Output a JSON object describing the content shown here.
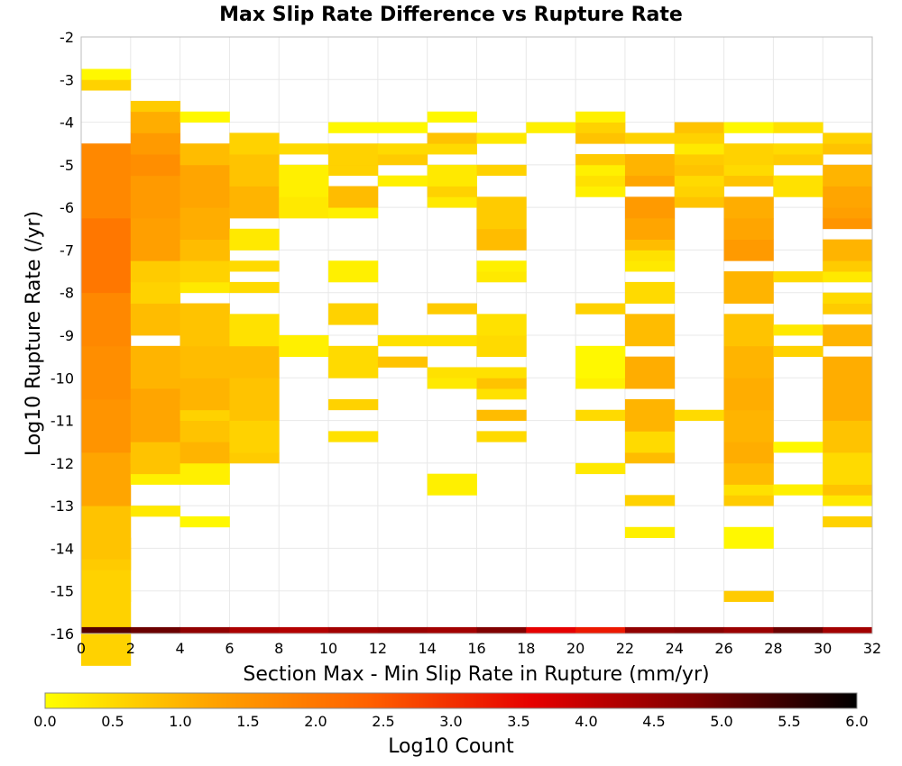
{
  "chart_data": {
    "type": "heatmap",
    "title": "Max Slip Rate Difference vs Rupture Rate",
    "xlabel": "Section Max - Min Slip Rate in Rupture (mm/yr)",
    "ylabel": "Log10 Rupture Rate (/yr)",
    "xlim": [
      0,
      32
    ],
    "ylim": [
      -16,
      -2
    ],
    "x_ticks": [
      "0",
      "2",
      "4",
      "6",
      "8",
      "10",
      "12",
      "14",
      "16",
      "18",
      "20",
      "22",
      "24",
      "26",
      "28",
      "30",
      "32"
    ],
    "y_ticks": [
      "-2",
      "-3",
      "-4",
      "-5",
      "-6",
      "-7",
      "-8",
      "-9",
      "-10",
      "-11",
      "-12",
      "-13",
      "-14",
      "-15",
      "-16"
    ],
    "x_bin_width": 2,
    "y_bin_height": 0.25,
    "grid": true,
    "colorbar": {
      "label": "Log10 Count",
      "min": 0.0,
      "max": 6.0,
      "ticks": [
        "0.0",
        "0.5",
        "1.0",
        "1.5",
        "2.0",
        "2.5",
        "3.0",
        "3.5",
        "4.0",
        "4.5",
        "5.0",
        "5.5",
        "6.0"
      ],
      "colors": [
        "#ffff00",
        "#ffa500",
        "#ff6000",
        "#e60000",
        "#800000",
        "#000000"
      ],
      "placement": "bottom"
    },
    "cells": [
      [
        0,
        -15.25,
        0.1,
        1
      ],
      [
        0,
        -14.75,
        0.6,
        9
      ],
      [
        0,
        -14.5,
        0.5
      ],
      [
        0,
        -14,
        0.7,
        3
      ],
      [
        0,
        -13.25,
        0.8,
        5
      ],
      [
        0,
        -12,
        1.2,
        5
      ],
      [
        0,
        -10.75,
        1.5,
        5
      ],
      [
        0,
        -9.5,
        1.6,
        5
      ],
      [
        0,
        -8.25,
        1.7,
        5
      ],
      [
        0,
        -6.5,
        2.0,
        7
      ],
      [
        0,
        -4.75,
        1.7,
        7
      ],
      [
        0,
        -3.25,
        0.6
      ],
      [
        0,
        -3,
        0.1
      ],
      [
        2,
        -13.25,
        0.3,
        1
      ],
      [
        2,
        -12.5,
        0.2,
        1
      ],
      [
        2,
        -12.25,
        0.5,
        1
      ],
      [
        2,
        -12,
        0.3
      ],
      [
        2,
        -11.75,
        0.8,
        3
      ],
      [
        2,
        -10.5,
        1.2,
        5
      ],
      [
        2,
        -9.5,
        1.0,
        4
      ],
      [
        2,
        -8.5,
        0.9,
        3
      ],
      [
        2,
        -8,
        0.6,
        2
      ],
      [
        2,
        -7.5,
        0.7,
        2
      ],
      [
        2,
        -6.5,
        1.3,
        4
      ],
      [
        2,
        -5.5,
        1.4,
        4
      ],
      [
        2,
        -5,
        1.6,
        2
      ],
      [
        2,
        -4.5,
        1.4,
        2
      ],
      [
        2,
        -4,
        1.1,
        2
      ],
      [
        2,
        -3.75,
        0.7
      ],
      [
        4,
        -13.5,
        0.1,
        1
      ],
      [
        4,
        -12.25,
        0.2,
        2
      ],
      [
        4,
        -11.75,
        1.0,
        2
      ],
      [
        4,
        -11.25,
        0.8,
        2
      ],
      [
        4,
        -10.75,
        0.6,
        2
      ],
      [
        4,
        -10.25,
        1.0,
        3
      ],
      [
        4,
        -9.5,
        0.9,
        3
      ],
      [
        4,
        -8.5,
        0.8,
        4
      ],
      [
        4,
        -8,
        0.3
      ],
      [
        4,
        -7.5,
        0.6,
        2
      ],
      [
        4,
        -7,
        0.9,
        2
      ],
      [
        4,
        -6.25,
        1.1,
        3
      ],
      [
        4,
        -5.25,
        1.2,
        4
      ],
      [
        4,
        -4.75,
        0.9,
        2
      ],
      [
        4,
        -4,
        0.1
      ],
      [
        6,
        -12,
        0.7,
        1
      ],
      [
        6,
        -11.25,
        0.6,
        3
      ],
      [
        6,
        -10.25,
        0.8,
        4
      ],
      [
        6,
        -9.5,
        0.9,
        3
      ],
      [
        6,
        -8.75,
        0.4,
        3
      ],
      [
        6,
        -8,
        0.5
      ],
      [
        6,
        -7.5,
        0.5
      ],
      [
        6,
        -6.75,
        0.3,
        2
      ],
      [
        6,
        -5.75,
        1.0,
        3
      ],
      [
        6,
        -5,
        0.8,
        3
      ],
      [
        6,
        -4.5,
        0.6,
        2
      ],
      [
        8,
        -9.25,
        0.2,
        2
      ],
      [
        8,
        -6,
        0.3,
        2
      ],
      [
        8,
        -5.25,
        0.2,
        3
      ],
      [
        8,
        -4.75,
        0.5
      ],
      [
        10,
        -11.5,
        0.4
      ],
      [
        10,
        -10.75,
        0.6
      ],
      [
        10,
        -9.5,
        0.5,
        3
      ],
      [
        10,
        -8.5,
        0.6,
        2
      ],
      [
        10,
        -7.5,
        0.2,
        2
      ],
      [
        10,
        -6.25,
        0.2
      ],
      [
        10,
        -5.75,
        0.9,
        2
      ],
      [
        10,
        -5.25,
        0.6
      ],
      [
        10,
        -5,
        0.8
      ],
      [
        10,
        -4.75,
        0.6,
        2
      ],
      [
        10,
        -4.25,
        0.1
      ],
      [
        12,
        -9.75,
        0.8
      ],
      [
        12,
        -9.25,
        0.4
      ],
      [
        12,
        -5.5,
        0.2
      ],
      [
        12,
        -5,
        0.7
      ],
      [
        12,
        -4.75,
        0.5
      ],
      [
        12,
        -4.25,
        0.1
      ],
      [
        14,
        -12.5,
        0.2,
        2
      ],
      [
        14,
        -10.25,
        0.3
      ],
      [
        14,
        -10,
        0.4
      ],
      [
        14,
        -9.25,
        0.4
      ],
      [
        14,
        -8.5,
        0.7
      ],
      [
        14,
        -6,
        0.3
      ],
      [
        14,
        -5.75,
        0.6
      ],
      [
        14,
        -5.25,
        0.3,
        2
      ],
      [
        14,
        -4.75,
        0.5
      ],
      [
        14,
        -4.5,
        0.8
      ],
      [
        14,
        -4,
        0.1
      ],
      [
        16,
        -11.5,
        0.5
      ],
      [
        16,
        -11,
        0.9
      ],
      [
        16,
        -10.5,
        0.4
      ],
      [
        16,
        -10.25,
        0.8
      ],
      [
        16,
        -10,
        0.4
      ],
      [
        16,
        -9.25,
        0.5,
        2
      ],
      [
        16,
        -8.75,
        0.4,
        2
      ],
      [
        16,
        -7.75,
        0.3
      ],
      [
        16,
        -7.5,
        0.2
      ],
      [
        16,
        -6.75,
        0.9,
        2
      ],
      [
        16,
        -6,
        0.7,
        3
      ],
      [
        16,
        -5.25,
        0.6
      ],
      [
        16,
        -4.5,
        0.3
      ],
      [
        18,
        -4.25,
        0.2
      ],
      [
        20,
        -12.25,
        0.3
      ],
      [
        20,
        -11,
        0.5
      ],
      [
        20,
        -10.25,
        0.2
      ],
      [
        20,
        -9.5,
        0.1,
        3
      ],
      [
        20,
        -8.5,
        0.6
      ],
      [
        20,
        -5.75,
        0.2
      ],
      [
        20,
        -5.5,
        0.4
      ],
      [
        20,
        -5.25,
        0.2
      ],
      [
        20,
        -5,
        0.7
      ],
      [
        20,
        -4.5,
        0.8
      ],
      [
        20,
        -4.25,
        0.6
      ],
      [
        20,
        -4,
        0.2
      ],
      [
        22,
        -13.75,
        0.2
      ],
      [
        22,
        -13,
        0.6
      ],
      [
        22,
        -12,
        0.9
      ],
      [
        22,
        -11.5,
        0.5,
        2
      ],
      [
        22,
        -10.75,
        1.0,
        3
      ],
      [
        22,
        -9.75,
        1.1,
        3
      ],
      [
        22,
        -8.75,
        0.9,
        3
      ],
      [
        22,
        -8,
        0.5,
        2
      ],
      [
        22,
        -7.5,
        0.3
      ],
      [
        22,
        -7.25,
        0.4
      ],
      [
        22,
        -7,
        0.9
      ],
      [
        22,
        -6.5,
        1.2,
        2
      ],
      [
        22,
        -6,
        1.4,
        2
      ],
      [
        22,
        -5.5,
        1.2
      ],
      [
        22,
        -5,
        1.0,
        2
      ],
      [
        22,
        -4.5,
        0.6
      ],
      [
        24,
        -11,
        0.5
      ],
      [
        24,
        -6,
        0.8
      ],
      [
        24,
        -5.75,
        0.6
      ],
      [
        24,
        -5.5,
        0.5
      ],
      [
        24,
        -5.25,
        0.8
      ],
      [
        24,
        -5,
        0.7
      ],
      [
        24,
        -4.75,
        0.3
      ],
      [
        24,
        -4.5,
        0.6
      ],
      [
        24,
        -4.25,
        0.8
      ],
      [
        26,
        -15.25,
        0.7
      ],
      [
        26,
        -13.75,
        0.1,
        2
      ],
      [
        26,
        -13,
        0.7
      ],
      [
        26,
        -12.75,
        0.4
      ],
      [
        26,
        -12.25,
        0.9,
        2
      ],
      [
        26,
        -11.75,
        1.1,
        2
      ],
      [
        26,
        -11,
        1.0,
        3
      ],
      [
        26,
        -10.25,
        1.1,
        3
      ],
      [
        26,
        -9.5,
        1.0,
        3
      ],
      [
        26,
        -8.75,
        0.8,
        3
      ],
      [
        26,
        -7.75,
        1.0,
        3
      ],
      [
        26,
        -7,
        1.4,
        2
      ],
      [
        26,
        -6.5,
        1.2,
        2
      ],
      [
        26,
        -6,
        1.1,
        2
      ],
      [
        26,
        -5.5,
        0.8
      ],
      [
        26,
        -5.25,
        0.5
      ],
      [
        26,
        -4.75,
        0.6,
        2
      ],
      [
        26,
        -4.25,
        0.1
      ],
      [
        28,
        -12.75,
        0.2
      ],
      [
        28,
        -11.75,
        0.1
      ],
      [
        28,
        -9.5,
        0.6
      ],
      [
        28,
        -9,
        0.3
      ],
      [
        28,
        -7.75,
        0.5
      ],
      [
        28,
        -5.5,
        0.4,
        2
      ],
      [
        28,
        -5,
        0.7
      ],
      [
        28,
        -4.75,
        0.5
      ],
      [
        28,
        -4.25,
        0.4
      ],
      [
        30,
        -13.5,
        0.6
      ],
      [
        30,
        -13,
        0.3
      ],
      [
        30,
        -12.75,
        0.8
      ],
      [
        30,
        -12,
        0.5,
        3
      ],
      [
        30,
        -11.25,
        0.8,
        3
      ],
      [
        30,
        -10.5,
        1.1,
        3
      ],
      [
        30,
        -9.75,
        1.1,
        3
      ],
      [
        30,
        -9,
        1.0,
        2
      ],
      [
        30,
        -8.5,
        0.7
      ],
      [
        30,
        -8.25,
        0.5
      ],
      [
        30,
        -7.75,
        0.3
      ],
      [
        30,
        -7.5,
        0.7
      ],
      [
        30,
        -7,
        1.0,
        2
      ],
      [
        30,
        -6.5,
        1.5
      ],
      [
        30,
        -6.25,
        1.3
      ],
      [
        30,
        -5.75,
        1.2,
        2
      ],
      [
        30,
        -5.25,
        1.0,
        2
      ],
      [
        30,
        -4.75,
        0.8
      ],
      [
        30,
        -4.5,
        0.6
      ]
    ]
  }
}
